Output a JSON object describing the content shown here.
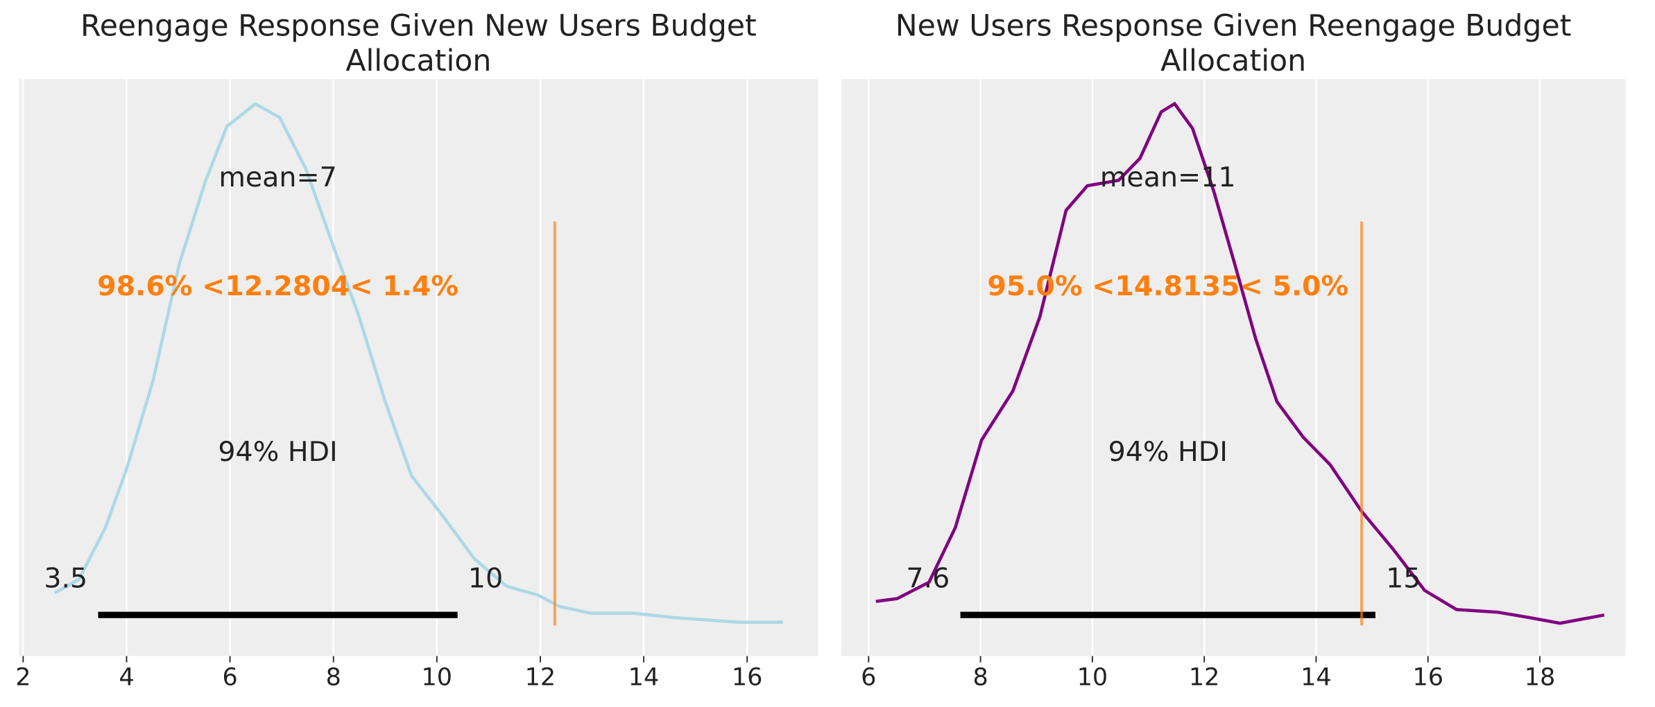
{
  "chart_data": [
    {
      "type": "line",
      "title": "Reengage Response Given New Users Budget\nAllocation",
      "x": [
        2.61,
        3.08,
        3.59,
        4.0,
        4.51,
        5.02,
        5.53,
        5.94,
        6.49,
        6.96,
        7.47,
        7.98,
        8.49,
        9.0,
        9.51,
        10.12,
        10.73,
        11.35,
        11.96,
        12.37,
        12.98,
        13.8,
        14.61,
        15.84,
        16.69
      ],
      "values": [
        0.013,
        0.019,
        0.042,
        0.068,
        0.107,
        0.159,
        0.196,
        0.22,
        0.23,
        0.224,
        0.201,
        0.168,
        0.136,
        0.098,
        0.065,
        0.047,
        0.028,
        0.016,
        0.012,
        0.007,
        0.004,
        0.004,
        0.002,
        0.0,
        0.0
      ],
      "color": "#add8e6",
      "xlim": [
        1.92,
        17.37
      ],
      "ylim": [
        -0.015,
        0.241
      ],
      "xticks": [
        2,
        4,
        6,
        8,
        10,
        12,
        14,
        16
      ],
      "grid": true,
      "mean_label": "mean=7",
      "hdi_label": "94% HDI",
      "hdi": [
        {
          "value": 3.45,
          "label": "3.5"
        },
        {
          "value": 10.4,
          "label": "10"
        }
      ],
      "ref_value": 12.2804,
      "ref_label": "98.6% <12.2804< 1.4%",
      "ref_color": "#ff7f0e"
    },
    {
      "type": "line",
      "title": "New Users Response Given Reengage Budget\nAllocation",
      "x": [
        6.13,
        6.51,
        7.08,
        7.55,
        8.02,
        8.58,
        9.06,
        9.53,
        9.91,
        10.47,
        10.85,
        11.23,
        11.47,
        11.79,
        12.17,
        12.55,
        12.92,
        13.3,
        13.77,
        14.25,
        14.81,
        15.38,
        15.94,
        16.51,
        17.26,
        17.83,
        18.36,
        19.15
      ],
      "values": [
        0.008,
        0.009,
        0.015,
        0.035,
        0.067,
        0.085,
        0.112,
        0.151,
        0.16,
        0.162,
        0.17,
        0.187,
        0.19,
        0.181,
        0.158,
        0.131,
        0.104,
        0.081,
        0.068,
        0.058,
        0.041,
        0.027,
        0.012,
        0.005,
        0.004,
        0.002,
        0.0,
        0.003
      ],
      "color": "#800080",
      "xlim": [
        5.51,
        19.53
      ],
      "ylim": [
        -0.012,
        0.199
      ],
      "xticks": [
        6,
        8,
        10,
        12,
        14,
        16,
        18
      ],
      "grid": true,
      "mean_label": "mean=11",
      "hdi_label": "94% HDI",
      "hdi": [
        {
          "value": 7.64,
          "label": "7.6"
        },
        {
          "value": 15.06,
          "label": "15"
        }
      ],
      "ref_value": 14.8135,
      "ref_label": "95.0% <14.8135< 5.0%",
      "ref_color": "#ff7f0e"
    }
  ]
}
